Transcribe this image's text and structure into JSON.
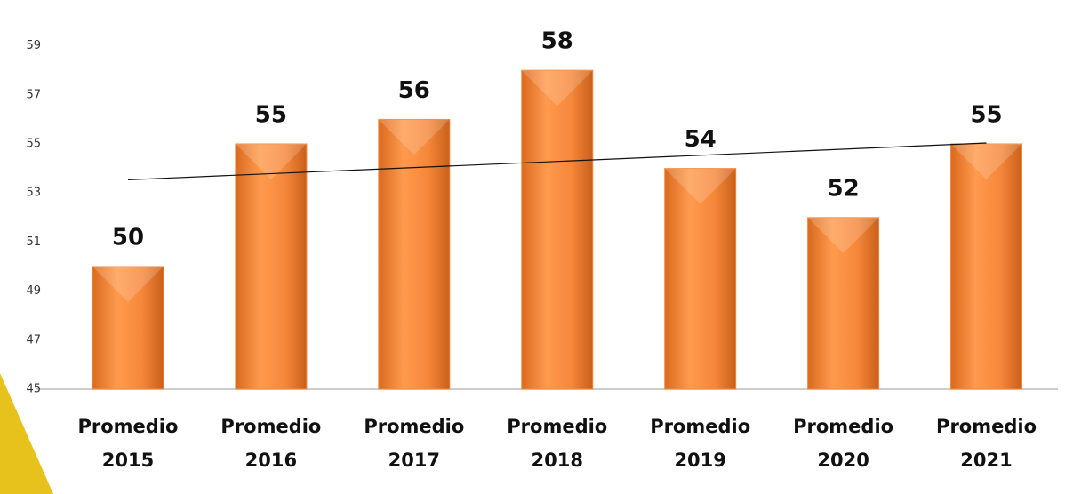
{
  "chart_data": {
    "type": "bar",
    "categories": [
      "Promedio 2015",
      "Promedio 2016",
      "Promedio 2017",
      "Promedio 2018",
      "Promedio 2019",
      "Promedio 2020",
      "Promedio 2021"
    ],
    "values": [
      50,
      55,
      56,
      58,
      54,
      52,
      55
    ],
    "color": "#f5873a",
    "ylim": [
      45,
      60
    ],
    "yticks": [
      45,
      47,
      49,
      51,
      53,
      55,
      57,
      59
    ],
    "trendline": true
  }
}
